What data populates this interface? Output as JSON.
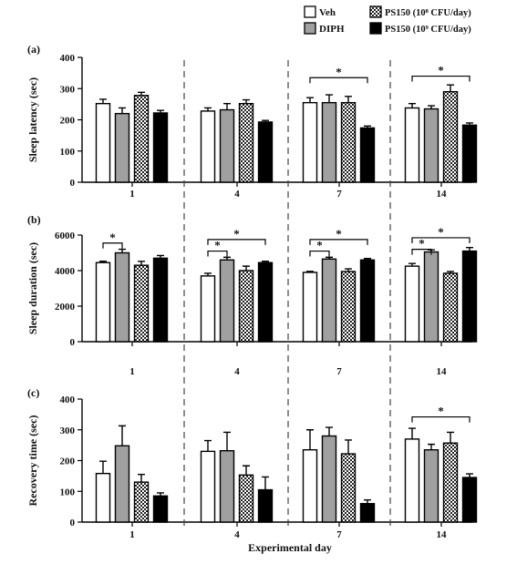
{
  "figure": {
    "xlabel": "Experimental day",
    "legend": [
      {
        "key": "veh",
        "label": "Veh",
        "fill": "#ffffff"
      },
      {
        "key": "diph",
        "label": "DIPH",
        "fill": "#a0a0a0"
      },
      {
        "key": "ps_low",
        "label": "PS150 (10⁸ CFU/day)",
        "fill": "pattern-checker"
      },
      {
        "key": "ps_high",
        "label": "PS150 (10⁹ CFU/day)",
        "fill": "#000000"
      }
    ]
  },
  "chart_data": [
    {
      "type": "bar",
      "panel_label": "(a)",
      "ylabel": "Sleep latency (sec)",
      "ylim": [
        0,
        400
      ],
      "yticks": [
        0,
        100,
        200,
        300,
        400
      ],
      "categories": [
        "1",
        "4",
        "7",
        "14"
      ],
      "series": [
        {
          "name": "Veh",
          "values": [
            252,
            228,
            255,
            238
          ],
          "errors": [
            14,
            10,
            16,
            14
          ]
        },
        {
          "name": "DIPH",
          "values": [
            220,
            232,
            255,
            235
          ],
          "errors": [
            18,
            20,
            25,
            10
          ]
        },
        {
          "name": "PS150 (10⁸ CFU/day)",
          "values": [
            278,
            252,
            255,
            290
          ],
          "errors": [
            10,
            12,
            20,
            22
          ]
        },
        {
          "name": "PS150 (10⁹ CFU/day)",
          "values": [
            222,
            193,
            174,
            183
          ],
          "errors": [
            8,
            5,
            6,
            7
          ]
        }
      ],
      "significance": [
        {
          "category": 2,
          "from": 0,
          "to": 3,
          "y": 335,
          "label": "*"
        },
        {
          "category": 3,
          "from": 0,
          "to": 3,
          "y": 340,
          "label": "*"
        }
      ]
    },
    {
      "type": "bar",
      "panel_label": "(b)",
      "ylabel": "Sleep duration (sec)",
      "ylim": [
        0,
        6000
      ],
      "yticks": [
        0,
        2000,
        4000,
        6000
      ],
      "categories": [
        "1",
        "4",
        "7",
        "14"
      ],
      "series": [
        {
          "name": "Veh",
          "values": [
            4450,
            3700,
            3900,
            4250
          ],
          "errors": [
            80,
            150,
            60,
            150
          ]
        },
        {
          "name": "DIPH",
          "values": [
            5000,
            4600,
            4650,
            5050
          ],
          "errors": [
            200,
            150,
            100,
            120
          ]
        },
        {
          "name": "PS150 (10⁸ CFU/day)",
          "values": [
            4300,
            4000,
            3950,
            3850
          ],
          "errors": [
            220,
            250,
            150,
            100
          ]
        },
        {
          "name": "PS150 (10⁹ CFU/day)",
          "values": [
            4700,
            4450,
            4600,
            5100
          ],
          "errors": [
            150,
            80,
            80,
            200
          ]
        }
      ],
      "significance": [
        {
          "category": 0,
          "from": 0,
          "to": 1,
          "y": 5550,
          "label": "*"
        },
        {
          "category": 1,
          "from": 0,
          "to": 1,
          "y": 5100,
          "label": "*"
        },
        {
          "category": 1,
          "from": 0,
          "to": 3,
          "y": 5750,
          "label": "*"
        },
        {
          "category": 2,
          "from": 0,
          "to": 1,
          "y": 5100,
          "label": "*"
        },
        {
          "category": 2,
          "from": 0,
          "to": 3,
          "y": 5750,
          "label": "*"
        },
        {
          "category": 3,
          "from": 0,
          "to": 1,
          "y": 5200,
          "label": "*"
        },
        {
          "category": 3,
          "from": 0,
          "to": 3,
          "y": 5850,
          "label": "*"
        }
      ]
    },
    {
      "type": "bar",
      "panel_label": "(c)",
      "ylabel": "Recovery time (sec)",
      "ylim": [
        0,
        400
      ],
      "yticks": [
        0,
        100,
        200,
        300,
        400
      ],
      "categories": [
        "1",
        "4",
        "7",
        "14"
      ],
      "series": [
        {
          "name": "Veh",
          "values": [
            158,
            230,
            235,
            270
          ],
          "errors": [
            40,
            35,
            65,
            35
          ]
        },
        {
          "name": "DIPH",
          "values": [
            248,
            232,
            280,
            235
          ],
          "errors": [
            65,
            60,
            28,
            18
          ]
        },
        {
          "name": "PS150 (10⁸ CFU/day)",
          "values": [
            130,
            153,
            222,
            257
          ],
          "errors": [
            25,
            30,
            45,
            35
          ]
        },
        {
          "name": "PS150 (10⁹ CFU/day)",
          "values": [
            85,
            105,
            60,
            145
          ],
          "errors": [
            10,
            42,
            12,
            12
          ]
        }
      ],
      "significance": [
        {
          "category": 3,
          "from": 0,
          "to": 3,
          "y": 342,
          "label": "*"
        }
      ]
    }
  ]
}
